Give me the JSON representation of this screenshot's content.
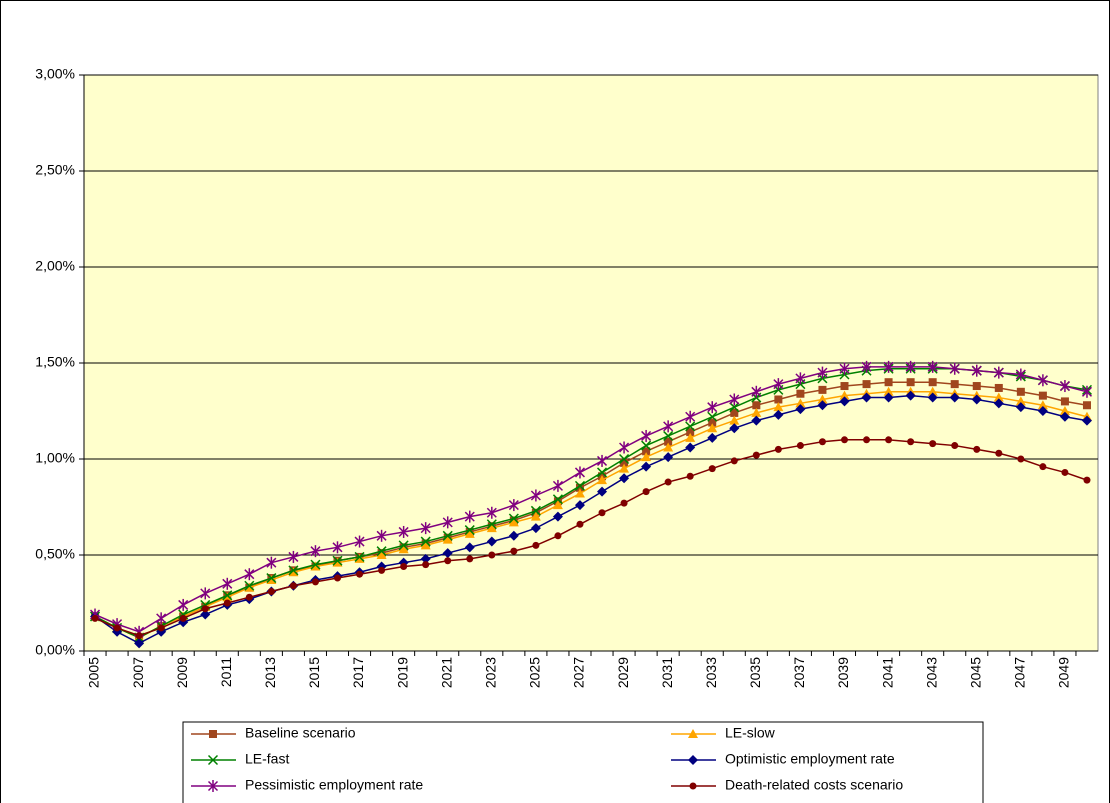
{
  "chart_data": {
    "type": "line",
    "categories": [
      "2005",
      null,
      "2007",
      null,
      "2009",
      null,
      "2011",
      null,
      "2013",
      null,
      "2015",
      null,
      "2017",
      null,
      "2019",
      null,
      "2021",
      null,
      "2023",
      null,
      "2025",
      null,
      "2027",
      null,
      "2029",
      null,
      "2031",
      null,
      "2033",
      null,
      "2035",
      null,
      "2037",
      null,
      "2039",
      null,
      "2041",
      null,
      "2043",
      null,
      "2045",
      null,
      "2047",
      null,
      "2049",
      null
    ],
    "ylim": [
      0,
      3
    ],
    "yticks": [
      {
        "value": 0,
        "label": "0,00%"
      },
      {
        "value": 0.5,
        "label": "0,50%"
      },
      {
        "value": 1,
        "label": "1,00%"
      },
      {
        "value": 1.5,
        "label": "1,50%"
      },
      {
        "value": 2,
        "label": "2,00%"
      },
      {
        "value": 2.5,
        "label": "2,50%"
      },
      {
        "value": 3,
        "label": "3,00%"
      }
    ],
    "grid": true,
    "legend": "bottom",
    "plot_background": "#ffffcc",
    "series": [
      {
        "name": "Baseline scenario",
        "color": "#a0461e",
        "marker": "square",
        "values": [
          0.18,
          0.12,
          0.07,
          0.13,
          0.18,
          0.23,
          0.29,
          0.33,
          0.38,
          0.42,
          0.44,
          0.47,
          0.49,
          0.51,
          0.54,
          0.56,
          0.59,
          0.62,
          0.65,
          0.68,
          0.72,
          0.78,
          0.85,
          0.91,
          0.98,
          1.04,
          1.09,
          1.14,
          1.19,
          1.24,
          1.28,
          1.31,
          1.34,
          1.36,
          1.38,
          1.39,
          1.4,
          1.4,
          1.4,
          1.39,
          1.38,
          1.37,
          1.35,
          1.33,
          1.3,
          1.28
        ]
      },
      {
        "name": "LE-slow",
        "color": "#ffa500",
        "marker": "triangle",
        "values": [
          0.18,
          0.12,
          0.07,
          0.13,
          0.18,
          0.23,
          0.28,
          0.33,
          0.37,
          0.41,
          0.44,
          0.46,
          0.48,
          0.5,
          0.53,
          0.55,
          0.58,
          0.61,
          0.64,
          0.67,
          0.7,
          0.76,
          0.82,
          0.89,
          0.95,
          1.01,
          1.06,
          1.11,
          1.16,
          1.2,
          1.24,
          1.27,
          1.29,
          1.31,
          1.33,
          1.34,
          1.35,
          1.35,
          1.35,
          1.34,
          1.33,
          1.32,
          1.3,
          1.28,
          1.25,
          1.22
        ]
      },
      {
        "name": "LE-fast",
        "color": "#008000",
        "marker": "x",
        "values": [
          0.18,
          0.12,
          0.07,
          0.13,
          0.19,
          0.24,
          0.29,
          0.34,
          0.38,
          0.42,
          0.45,
          0.47,
          0.49,
          0.52,
          0.55,
          0.57,
          0.6,
          0.63,
          0.66,
          0.69,
          0.73,
          0.79,
          0.86,
          0.93,
          1.0,
          1.07,
          1.12,
          1.17,
          1.22,
          1.27,
          1.32,
          1.36,
          1.39,
          1.42,
          1.44,
          1.46,
          1.47,
          1.47,
          1.47,
          1.47,
          1.46,
          1.45,
          1.43,
          1.41,
          1.38,
          1.36
        ]
      },
      {
        "name": "Optimistic employment rate",
        "color": "#000080",
        "marker": "diamond",
        "values": [
          0.18,
          0.1,
          0.04,
          0.1,
          0.15,
          0.19,
          0.24,
          0.27,
          0.31,
          0.34,
          0.37,
          0.39,
          0.41,
          0.44,
          0.46,
          0.48,
          0.51,
          0.54,
          0.57,
          0.6,
          0.64,
          0.7,
          0.76,
          0.83,
          0.9,
          0.96,
          1.01,
          1.06,
          1.11,
          1.16,
          1.2,
          1.23,
          1.26,
          1.28,
          1.3,
          1.32,
          1.32,
          1.33,
          1.32,
          1.32,
          1.31,
          1.29,
          1.27,
          1.25,
          1.22,
          1.2
        ]
      },
      {
        "name": "Pessimistic employment rate",
        "color": "#800080",
        "marker": "star",
        "values": [
          0.19,
          0.14,
          0.1,
          0.17,
          0.24,
          0.3,
          0.35,
          0.4,
          0.46,
          0.49,
          0.52,
          0.54,
          0.57,
          0.6,
          0.62,
          0.64,
          0.67,
          0.7,
          0.72,
          0.76,
          0.81,
          0.86,
          0.93,
          0.99,
          1.06,
          1.12,
          1.17,
          1.22,
          1.27,
          1.31,
          1.35,
          1.39,
          1.42,
          1.45,
          1.47,
          1.48,
          1.48,
          1.48,
          1.48,
          1.47,
          1.46,
          1.45,
          1.44,
          1.41,
          1.38,
          1.35
        ]
      },
      {
        "name": "Death-related costs scenario",
        "color": "#800000",
        "marker": "circle",
        "values": [
          0.17,
          0.12,
          0.08,
          0.12,
          0.17,
          0.22,
          0.25,
          0.28,
          0.31,
          0.34,
          0.36,
          0.38,
          0.4,
          0.42,
          0.44,
          0.45,
          0.47,
          0.48,
          0.5,
          0.52,
          0.55,
          0.6,
          0.66,
          0.72,
          0.77,
          0.83,
          0.88,
          0.91,
          0.95,
          0.99,
          1.02,
          1.05,
          1.07,
          1.09,
          1.1,
          1.1,
          1.1,
          1.09,
          1.08,
          1.07,
          1.05,
          1.03,
          1.0,
          0.96,
          0.93,
          0.89
        ]
      }
    ]
  }
}
